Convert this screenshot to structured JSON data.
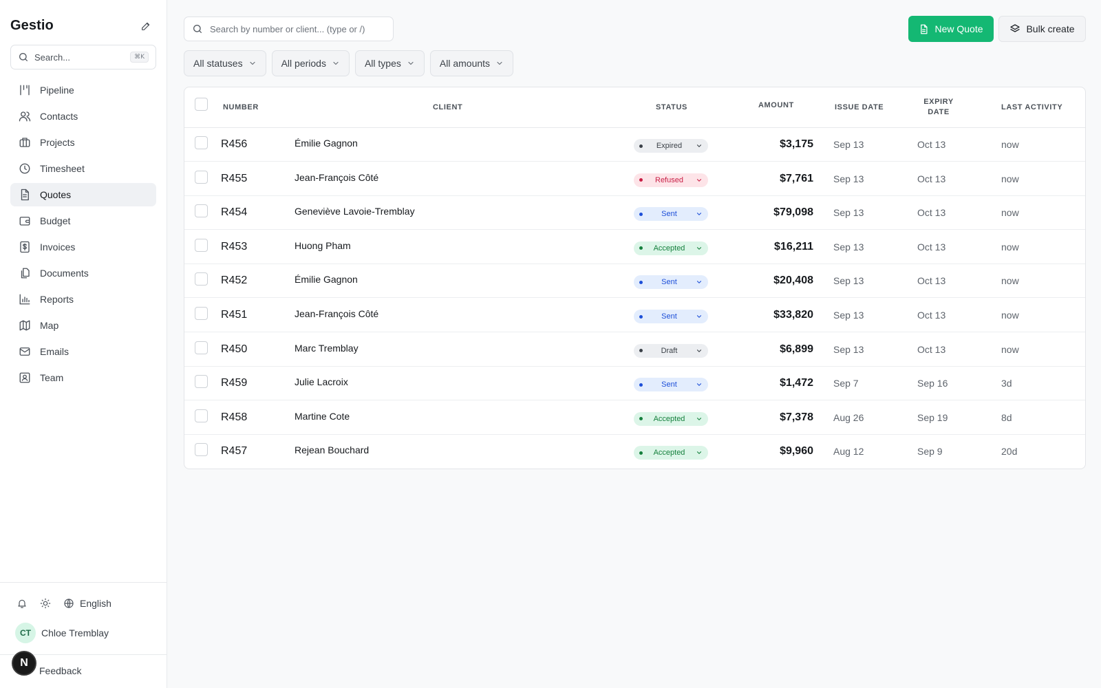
{
  "app": {
    "name": "Gestio"
  },
  "sidebar": {
    "search_placeholder": "Search...",
    "search_shortcut": "⌘K",
    "items": [
      {
        "label": "Pipeline",
        "icon": "pipeline-icon",
        "active": false
      },
      {
        "label": "Contacts",
        "icon": "contacts-icon",
        "active": false
      },
      {
        "label": "Projects",
        "icon": "projects-icon",
        "active": false
      },
      {
        "label": "Timesheet",
        "icon": "clock-icon",
        "active": false
      },
      {
        "label": "Quotes",
        "icon": "file-icon",
        "active": true
      },
      {
        "label": "Budget",
        "icon": "wallet-icon",
        "active": false
      },
      {
        "label": "Invoices",
        "icon": "dollar-icon",
        "active": false
      },
      {
        "label": "Documents",
        "icon": "documents-icon",
        "active": false
      },
      {
        "label": "Reports",
        "icon": "chart-icon",
        "active": false
      },
      {
        "label": "Map",
        "icon": "map-icon",
        "active": false
      },
      {
        "label": "Emails",
        "icon": "mail-icon",
        "active": false
      },
      {
        "label": "Team",
        "icon": "team-icon",
        "active": false
      }
    ],
    "language": "English",
    "user": {
      "initials": "CT",
      "name": "Chloe Tremblay"
    },
    "feedback": "Feedback",
    "badge": "N"
  },
  "toolbar": {
    "search_placeholder": "Search by number or client... (type or /)",
    "new_quote": "New Quote",
    "bulk_create": "Bulk create"
  },
  "filters": [
    "All statuses",
    "All periods",
    "All types",
    "All amounts"
  ],
  "table": {
    "headers": {
      "number": "NUMBER",
      "client": "CLIENT",
      "status": "STATUS",
      "amount": "AMOUNT",
      "issue_date": "ISSUE DATE",
      "expiry_date": "EXPIRY DATE",
      "last_activity": "LAST ACTIVITY"
    },
    "rows": [
      {
        "number": "R456",
        "client": "Émilie Gagnon",
        "status": "Expired",
        "amount": "$3,175",
        "issue": "Sep 13",
        "expiry": "Oct 13",
        "activity": "now"
      },
      {
        "number": "R455",
        "client": "Jean-François Côté",
        "status": "Refused",
        "amount": "$7,761",
        "issue": "Sep 13",
        "expiry": "Oct 13",
        "activity": "now"
      },
      {
        "number": "R454",
        "client": "Geneviève Lavoie-Tremblay",
        "status": "Sent",
        "amount": "$79,098",
        "issue": "Sep 13",
        "expiry": "Oct 13",
        "activity": "now"
      },
      {
        "number": "R453",
        "client": "Huong Pham",
        "status": "Accepted",
        "amount": "$16,211",
        "issue": "Sep 13",
        "expiry": "Oct 13",
        "activity": "now"
      },
      {
        "number": "R452",
        "client": "Émilie Gagnon",
        "status": "Sent",
        "amount": "$20,408",
        "issue": "Sep 13",
        "expiry": "Oct 13",
        "activity": "now"
      },
      {
        "number": "R451",
        "client": "Jean-François Côté",
        "status": "Sent",
        "amount": "$33,820",
        "issue": "Sep 13",
        "expiry": "Oct 13",
        "activity": "now"
      },
      {
        "number": "R450",
        "client": "Marc Tremblay",
        "status": "Draft",
        "amount": "$6,899",
        "issue": "Sep 13",
        "expiry": "Oct 13",
        "activity": "now"
      },
      {
        "number": "R459",
        "client": "Julie Lacroix",
        "status": "Sent",
        "amount": "$1,472",
        "issue": "Sep 7",
        "expiry": "Sep 16",
        "activity": "3d"
      },
      {
        "number": "R458",
        "client": "Martine Cote",
        "status": "Accepted",
        "amount": "$7,378",
        "issue": "Aug 26",
        "expiry": "Sep 19",
        "activity": "8d"
      },
      {
        "number": "R457",
        "client": "Rejean Bouchard",
        "status": "Accepted",
        "amount": "$9,960",
        "issue": "Aug 12",
        "expiry": "Sep 9",
        "activity": "20d"
      }
    ]
  },
  "colors": {
    "accent": "#14b873",
    "status": {
      "Expired": {
        "bg": "#eceef1",
        "fg": "#3b4148",
        "dot": "#3b4148"
      },
      "Refused": {
        "bg": "#fde4e8",
        "fg": "#c81e45",
        "dot": "#c81e45"
      },
      "Sent": {
        "bg": "#e3edfd",
        "fg": "#1d4fd8",
        "dot": "#1d4fd8"
      },
      "Accepted": {
        "bg": "#dcf5e8",
        "fg": "#15803d",
        "dot": "#15803d"
      },
      "Draft": {
        "bg": "#eceef1",
        "fg": "#3b4148",
        "dot": "#3b4148"
      }
    }
  }
}
